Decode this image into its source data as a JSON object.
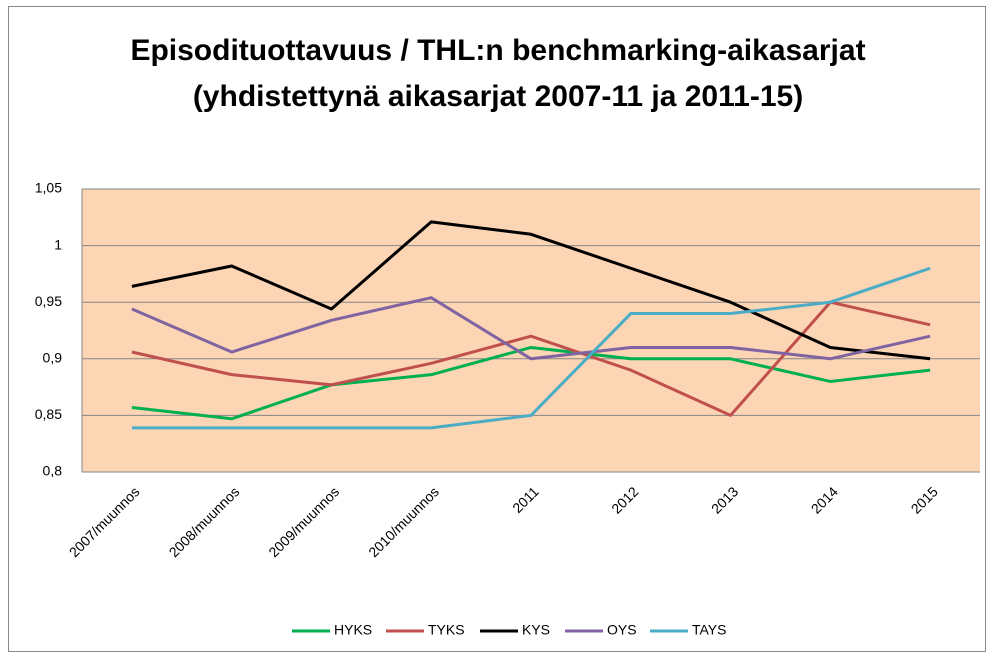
{
  "chart_data": {
    "type": "line",
    "title": "Episodituottavuus / THL:n benchmarking-aikasarjat (yhdistettynä aikasarjat 2007-11 ja 2011-15)",
    "categories": [
      "2007/muunnos",
      "2008/muunnos",
      "2009/muunnos",
      "2010/muunnos",
      "2011",
      "2012",
      "2013",
      "2014",
      "2015"
    ],
    "series": [
      {
        "name": "HYKS",
        "color": "#00b050",
        "values": [
          0.857,
          0.847,
          0.877,
          0.886,
          0.91,
          0.9,
          0.9,
          0.88,
          0.89
        ]
      },
      {
        "name": "TYKS",
        "color": "#c0504d",
        "values": [
          0.906,
          0.886,
          0.877,
          0.896,
          0.92,
          0.89,
          0.85,
          0.95,
          0.93
        ]
      },
      {
        "name": "KYS",
        "color": "#000000",
        "values": [
          0.964,
          0.982,
          0.944,
          1.021,
          1.01,
          0.98,
          0.95,
          0.91,
          0.9
        ]
      },
      {
        "name": "OYS",
        "color": "#8064a2",
        "values": [
          0.944,
          0.906,
          0.934,
          0.954,
          0.9,
          0.91,
          0.91,
          0.9,
          0.92
        ]
      },
      {
        "name": "TAYS",
        "color": "#4bacc6",
        "values": [
          0.839,
          0.839,
          0.839,
          0.839,
          0.85,
          0.94,
          0.94,
          0.95,
          0.98
        ]
      }
    ],
    "ylim": [
      0.8,
      1.05
    ],
    "yticks": [
      {
        "value": 0.8,
        "label": "0,8"
      },
      {
        "value": 0.85,
        "label": "0,85"
      },
      {
        "value": 0.9,
        "label": "0,9"
      },
      {
        "value": 0.95,
        "label": "0,95"
      },
      1,
      {
        "value": 1.05,
        "label": "1,05"
      }
    ],
    "grid": true,
    "legend": "bottom",
    "plot_background": "#fcd5b4"
  }
}
